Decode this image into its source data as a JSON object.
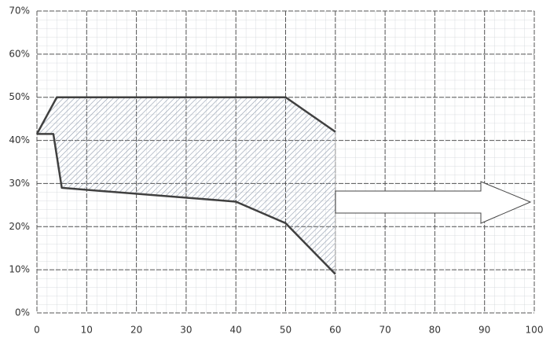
{
  "chart_data": {
    "type": "area",
    "series": [
      {
        "x": [
          0,
          4,
          50,
          60
        ],
        "values": [
          41.5,
          50,
          50,
          42
        ],
        "color": "#404040"
      },
      {
        "x": [
          0,
          3.3,
          5,
          40,
          50,
          60
        ],
        "values": [
          41.5,
          41.5,
          29,
          25.8,
          20.8,
          9
        ],
        "color": "#404040"
      }
    ],
    "fill_color": "#9aa6b8",
    "xlim": [
      0,
      100
    ],
    "xticks": [
      0,
      10,
      20,
      30,
      40,
      50,
      60,
      70,
      80,
      90,
      100
    ],
    "ylim": [
      0,
      70
    ],
    "yticks": [
      {
        "value": 0,
        "label": "0%"
      },
      {
        "value": 10,
        "label": "10%"
      },
      {
        "value": 20,
        "label": "20%"
      },
      {
        "value": 30,
        "label": "30%"
      },
      {
        "value": 40,
        "label": "40%"
      },
      {
        "value": 50,
        "label": "50%"
      },
      {
        "value": 60,
        "label": "60%"
      },
      {
        "value": 70,
        "label": "70%"
      }
    ],
    "grid": true
  }
}
